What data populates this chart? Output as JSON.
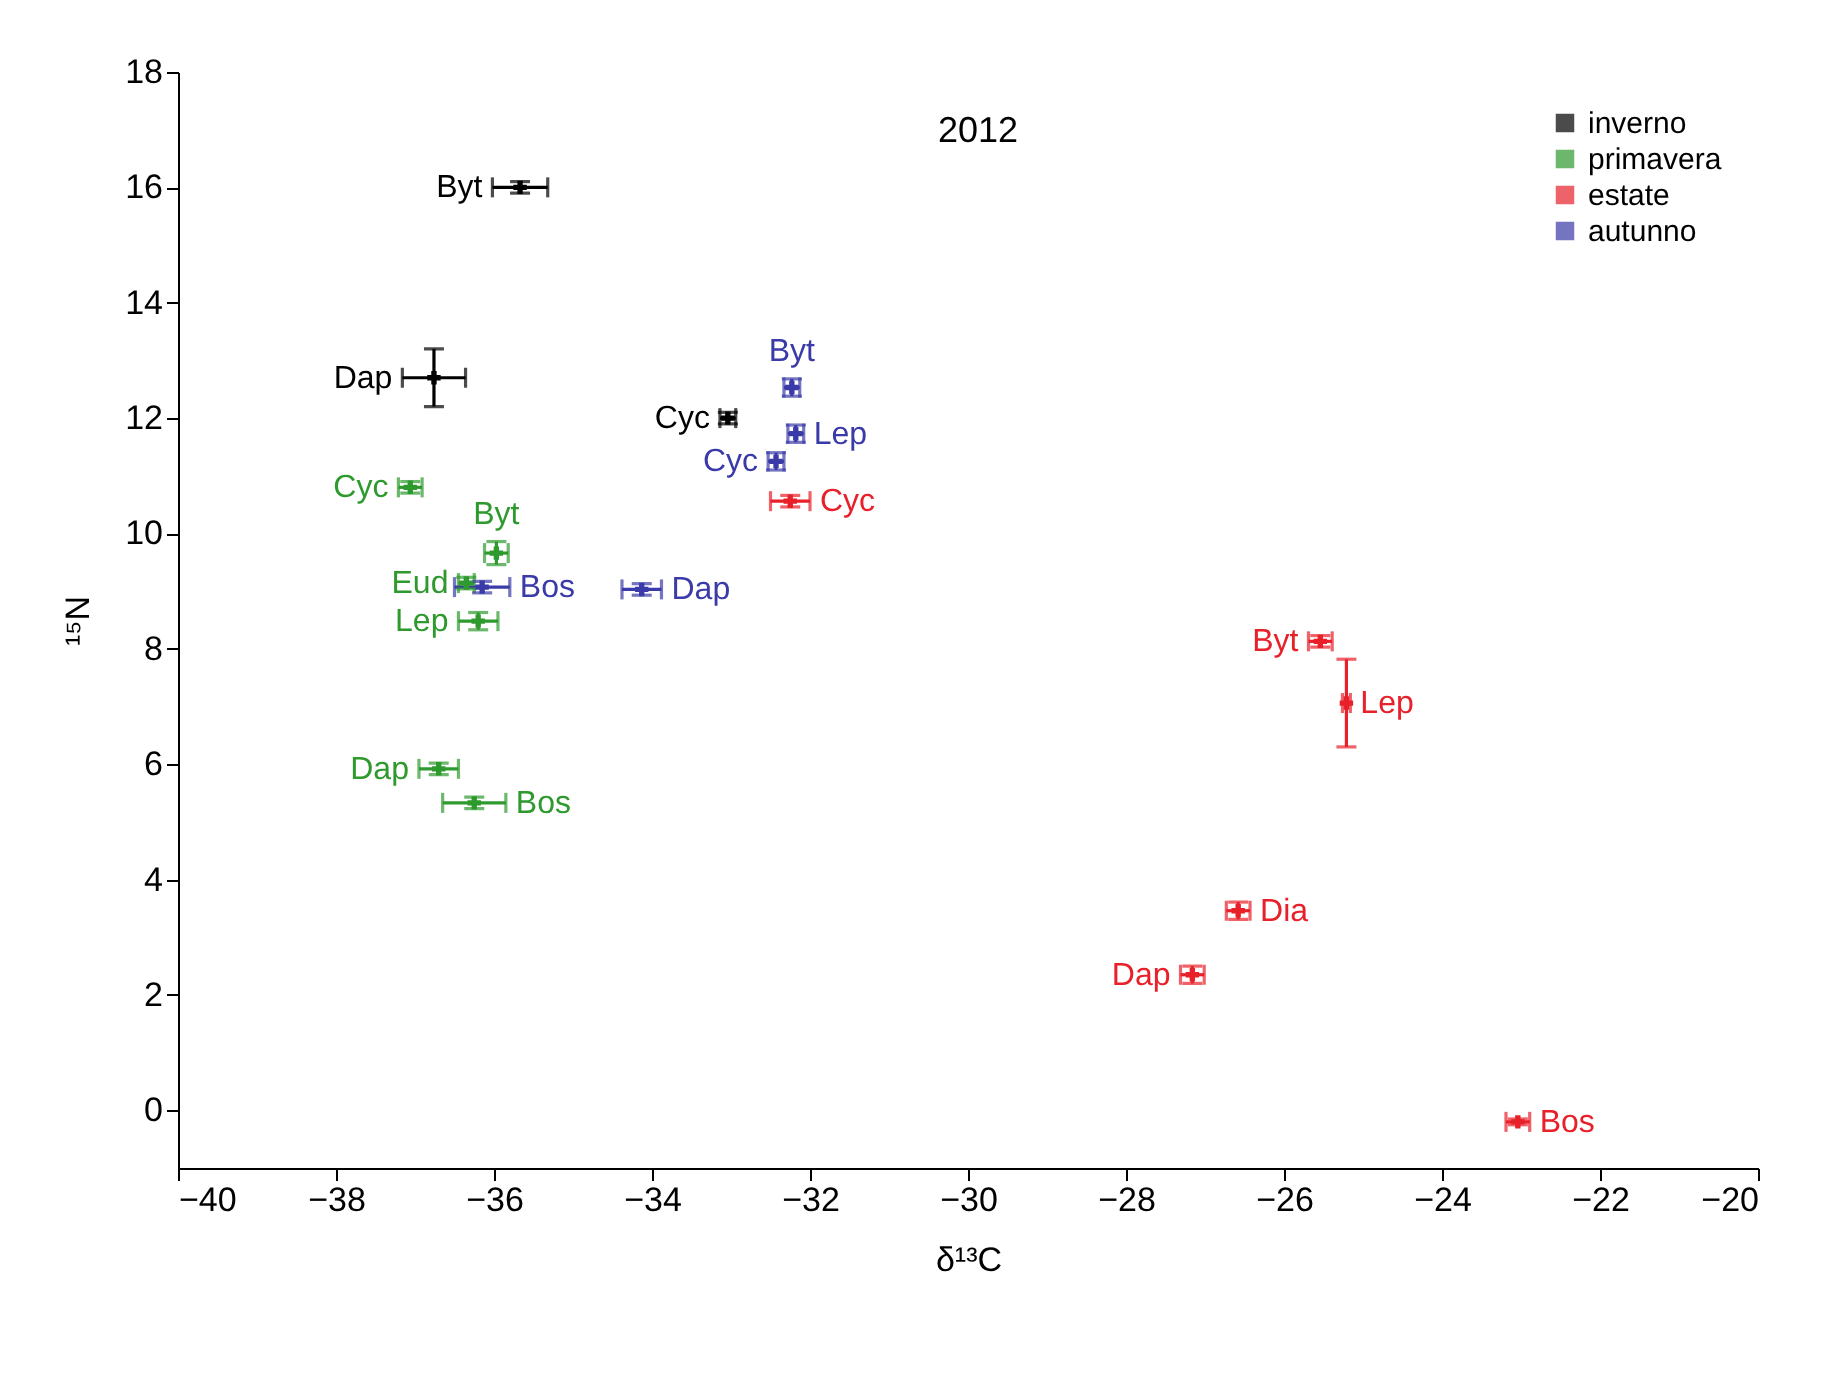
{
  "chart_data": {
    "type": "scatter",
    "title": "2012",
    "xlabel": "δ¹³C",
    "ylabel": "¹⁵N",
    "xlim": [
      -40,
      -20
    ],
    "xticks": [
      -40,
      -38,
      -36,
      -34,
      -32,
      -30,
      -28,
      -26,
      -24,
      -22,
      -20
    ],
    "ylim": [
      -1,
      18
    ],
    "yticks": [
      0,
      2,
      4,
      6,
      8,
      10,
      12,
      14,
      16,
      18
    ],
    "grid": false,
    "legend": "top right",
    "marker": "cross",
    "series": [
      {
        "name": "inverno",
        "color": "#000000",
        "x": [
          -35.67,
          -36.76,
          -33.04
        ],
        "values": [
          16.0,
          12.7,
          12.0
        ],
        "xerrors": [
          0.35,
          0.4,
          0.1
        ],
        "errors": [
          0.1,
          0.5,
          0.1
        ]
      },
      {
        "name": "primavera",
        "color": "#2e9a2e",
        "x": [
          -37.06,
          -35.97,
          -36.35,
          -36.2,
          -36.7,
          -36.25
        ],
        "values": [
          10.8,
          9.66,
          9.14,
          8.48,
          5.92,
          5.33
        ],
        "xerrors": [
          0.15,
          0.15,
          0.1,
          0.25,
          0.25,
          0.4
        ],
        "errors": [
          0.1,
          0.2,
          0.1,
          0.15,
          0.1,
          0.1
        ]
      },
      {
        "name": "estate",
        "color": "#e8202a",
        "x": [
          -32.25,
          -25.54,
          -25.21,
          -26.58,
          -27.16,
          -23.04
        ],
        "values": [
          10.56,
          8.13,
          7.06,
          3.46,
          2.35,
          -0.2
        ],
        "xerrors": [
          0.25,
          0.15,
          0.05,
          0.15,
          0.15,
          0.15
        ],
        "errors": [
          0.1,
          0.1,
          0.76,
          0.15,
          0.15,
          0.05
        ]
      },
      {
        "name": "autunno",
        "color": "#3a3aa8",
        "x": [
          -32.23,
          -32.18,
          -32.43,
          -36.15,
          -34.13
        ],
        "values": [
          12.53,
          11.73,
          11.25,
          9.07,
          9.03
        ],
        "xerrors": [
          0.1,
          0.1,
          0.1,
          0.35,
          0.25
        ],
        "errors": [
          0.15,
          0.15,
          0.15,
          0.1,
          0.1
        ]
      }
    ],
    "annotations": [
      {
        "text": "Byt",
        "x": -35.67,
        "y": 16.0
      },
      {
        "text": "Dap",
        "x": -36.76,
        "y": 12.7
      },
      {
        "text": "Cyc",
        "x": -33.04,
        "y": 12.0
      },
      {
        "text": "Cyc",
        "x": -37.06,
        "y": 10.8
      },
      {
        "text": "Byt",
        "x": -35.97,
        "y": 9.66
      },
      {
        "text": "Eud",
        "x": -36.35,
        "y": 9.14
      },
      {
        "text": "Lep",
        "x": -36.2,
        "y": 8.48
      },
      {
        "text": "Dap",
        "x": -36.7,
        "y": 5.92
      },
      {
        "text": "Bos",
        "x": -36.25,
        "y": 5.33
      },
      {
        "text": "Byt",
        "x": -32.23,
        "y": 12.53
      },
      {
        "text": "Lep",
        "x": -32.18,
        "y": 11.73
      },
      {
        "text": "Cyc",
        "x": -32.43,
        "y": 11.25
      },
      {
        "text": "Bos",
        "x": -36.15,
        "y": 9.07
      },
      {
        "text": "Dap",
        "x": -34.13,
        "y": 9.03
      },
      {
        "text": "Cyc",
        "x": -32.25,
        "y": 10.56
      },
      {
        "text": "Byt",
        "x": -25.54,
        "y": 8.13
      },
      {
        "text": "Lep",
        "x": -25.21,
        "y": 7.06
      },
      {
        "text": "Dia",
        "x": -26.58,
        "y": 3.46
      },
      {
        "text": "Dap",
        "x": -27.16,
        "y": 2.35
      },
      {
        "text": "Bos",
        "x": -23.04,
        "y": -0.2
      }
    ]
  }
}
